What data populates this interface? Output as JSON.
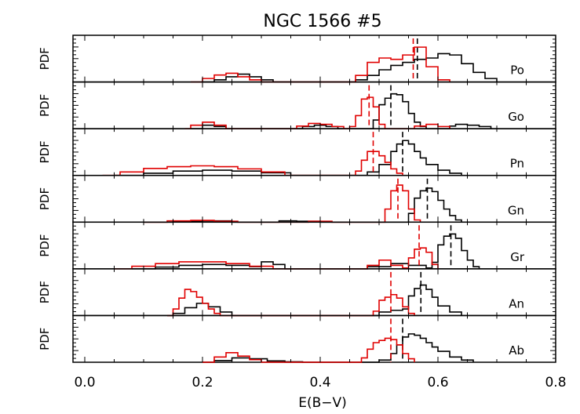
{
  "chart_data": {
    "type": "histogram-stack",
    "title": "NGC 1566 #5",
    "xlabel": "E(B−V)",
    "ylabel": "PDF",
    "xlim": [
      -0.02,
      0.8
    ],
    "xticks": [
      0.0,
      0.2,
      0.4,
      0.6,
      0.8
    ],
    "xtick_labels": [
      "0.0",
      "0.2",
      "0.4",
      "0.6",
      "0.8"
    ],
    "colors": {
      "black_series": "#000000",
      "red_series": "#e00000"
    },
    "panels": [
      {
        "label": "Po",
        "black_median": 0.565,
        "red_median": 0.558,
        "black": [
          [
            0.2,
            0
          ],
          [
            0.22,
            0.05
          ],
          [
            0.24,
            0.12
          ],
          [
            0.26,
            0.18
          ],
          [
            0.28,
            0.12
          ],
          [
            0.3,
            0.05
          ],
          [
            0.32,
            0
          ],
          [
            0.44,
            0
          ],
          [
            0.46,
            0.05
          ],
          [
            0.48,
            0.15
          ],
          [
            0.5,
            0.28
          ],
          [
            0.52,
            0.38
          ],
          [
            0.54,
            0.45
          ],
          [
            0.56,
            0.52
          ],
          [
            0.58,
            0.55
          ],
          [
            0.6,
            0.65
          ],
          [
            0.62,
            0.62
          ],
          [
            0.64,
            0.42
          ],
          [
            0.66,
            0.22
          ],
          [
            0.68,
            0.08
          ],
          [
            0.7,
            0
          ]
        ],
        "red": [
          [
            0.18,
            0
          ],
          [
            0.2,
            0.08
          ],
          [
            0.22,
            0.16
          ],
          [
            0.24,
            0.2
          ],
          [
            0.26,
            0.12
          ],
          [
            0.28,
            0.05
          ],
          [
            0.3,
            0
          ],
          [
            0.44,
            0
          ],
          [
            0.46,
            0.15
          ],
          [
            0.48,
            0.45
          ],
          [
            0.5,
            0.55
          ],
          [
            0.52,
            0.52
          ],
          [
            0.54,
            0.62
          ],
          [
            0.56,
            0.8
          ],
          [
            0.58,
            0.35
          ],
          [
            0.6,
            0.05
          ],
          [
            0.62,
            0
          ]
        ]
      },
      {
        "label": "Go",
        "black_median": 0.52,
        "red_median": 0.483,
        "black": [
          [
            0.18,
            0
          ],
          [
            0.2,
            0.08
          ],
          [
            0.22,
            0.05
          ],
          [
            0.24,
            0
          ],
          [
            0.35,
            0
          ],
          [
            0.37,
            0.05
          ],
          [
            0.39,
            0.08
          ],
          [
            0.41,
            0.05
          ],
          [
            0.43,
            0
          ],
          [
            0.48,
            0
          ],
          [
            0.49,
            0.2
          ],
          [
            0.5,
            0.55
          ],
          [
            0.51,
            0.7
          ],
          [
            0.52,
            0.8
          ],
          [
            0.53,
            0.78
          ],
          [
            0.54,
            0.62
          ],
          [
            0.55,
            0.35
          ],
          [
            0.56,
            0.15
          ],
          [
            0.57,
            0.05
          ],
          [
            0.58,
            0
          ],
          [
            0.61,
            0
          ],
          [
            0.62,
            0.06
          ],
          [
            0.63,
            0.1
          ],
          [
            0.65,
            0.08
          ],
          [
            0.67,
            0.05
          ],
          [
            0.69,
            0
          ]
        ],
        "red": [
          [
            0.17,
            0
          ],
          [
            0.18,
            0.08
          ],
          [
            0.2,
            0.15
          ],
          [
            0.22,
            0.08
          ],
          [
            0.24,
            0
          ],
          [
            0.34,
            0
          ],
          [
            0.36,
            0.06
          ],
          [
            0.38,
            0.12
          ],
          [
            0.4,
            0.1
          ],
          [
            0.42,
            0.05
          ],
          [
            0.44,
            0
          ],
          [
            0.45,
            0.05
          ],
          [
            0.46,
            0.3
          ],
          [
            0.47,
            0.68
          ],
          [
            0.48,
            0.72
          ],
          [
            0.49,
            0.5
          ],
          [
            0.5,
            0.1
          ],
          [
            0.51,
            0
          ],
          [
            0.55,
            0
          ],
          [
            0.56,
            0.06
          ],
          [
            0.58,
            0.1
          ],
          [
            0.6,
            0.05
          ],
          [
            0.62,
            0
          ]
        ]
      },
      {
        "label": "Pn",
        "black_median": 0.54,
        "red_median": 0.49,
        "black": [
          [
            0.05,
            0
          ],
          [
            0.1,
            0.05
          ],
          [
            0.15,
            0.1
          ],
          [
            0.2,
            0.12
          ],
          [
            0.25,
            0.1
          ],
          [
            0.3,
            0.06
          ],
          [
            0.35,
            0
          ],
          [
            0.47,
            0
          ],
          [
            0.48,
            0.08
          ],
          [
            0.5,
            0.25
          ],
          [
            0.52,
            0.55
          ],
          [
            0.53,
            0.72
          ],
          [
            0.54,
            0.8
          ],
          [
            0.55,
            0.72
          ],
          [
            0.56,
            0.55
          ],
          [
            0.57,
            0.4
          ],
          [
            0.58,
            0.25
          ],
          [
            0.6,
            0.12
          ],
          [
            0.62,
            0.05
          ],
          [
            0.64,
            0
          ]
        ],
        "red": [
          [
            0.03,
            0
          ],
          [
            0.06,
            0.08
          ],
          [
            0.1,
            0.16
          ],
          [
            0.14,
            0.2
          ],
          [
            0.18,
            0.22
          ],
          [
            0.22,
            0.2
          ],
          [
            0.26,
            0.15
          ],
          [
            0.3,
            0.08
          ],
          [
            0.34,
            0
          ],
          [
            0.45,
            0
          ],
          [
            0.46,
            0.1
          ],
          [
            0.47,
            0.35
          ],
          [
            0.48,
            0.55
          ],
          [
            0.49,
            0.55
          ],
          [
            0.5,
            0.45
          ],
          [
            0.51,
            0.3
          ],
          [
            0.52,
            0.15
          ],
          [
            0.53,
            0.05
          ],
          [
            0.54,
            0
          ]
        ]
      },
      {
        "label": "Gn",
        "black_median": 0.582,
        "red_median": 0.532,
        "black": [
          [
            0.1,
            0
          ],
          [
            0.15,
            0.02
          ],
          [
            0.2,
            0.03
          ],
          [
            0.25,
            0
          ],
          [
            0.3,
            0
          ],
          [
            0.33,
            0.03
          ],
          [
            0.36,
            0.02
          ],
          [
            0.4,
            0
          ],
          [
            0.54,
            0
          ],
          [
            0.55,
            0.2
          ],
          [
            0.56,
            0.55
          ],
          [
            0.57,
            0.72
          ],
          [
            0.58,
            0.78
          ],
          [
            0.59,
            0.7
          ],
          [
            0.6,
            0.5
          ],
          [
            0.61,
            0.3
          ],
          [
            0.62,
            0.15
          ],
          [
            0.63,
            0.05
          ],
          [
            0.64,
            0
          ]
        ],
        "red": [
          [
            0.1,
            0
          ],
          [
            0.14,
            0.03
          ],
          [
            0.18,
            0.04
          ],
          [
            0.22,
            0.02
          ],
          [
            0.26,
            0
          ],
          [
            0.36,
            0
          ],
          [
            0.38,
            0.02
          ],
          [
            0.42,
            0
          ],
          [
            0.5,
            0
          ],
          [
            0.51,
            0.3
          ],
          [
            0.52,
            0.72
          ],
          [
            0.53,
            0.85
          ],
          [
            0.54,
            0.72
          ],
          [
            0.55,
            0.3
          ],
          [
            0.56,
            0.05
          ],
          [
            0.57,
            0
          ]
        ]
      },
      {
        "label": "Gr",
        "black_median": 0.622,
        "red_median": 0.568,
        "black": [
          [
            0.08,
            0
          ],
          [
            0.12,
            0.04
          ],
          [
            0.16,
            0.08
          ],
          [
            0.2,
            0.1
          ],
          [
            0.24,
            0.08
          ],
          [
            0.28,
            0.05
          ],
          [
            0.3,
            0.16
          ],
          [
            0.32,
            0.1
          ],
          [
            0.34,
            0
          ],
          [
            0.45,
            0
          ],
          [
            0.48,
            0.05
          ],
          [
            0.52,
            0.12
          ],
          [
            0.55,
            0.08
          ],
          [
            0.58,
            0.02
          ],
          [
            0.59,
            0.15
          ],
          [
            0.6,
            0.55
          ],
          [
            0.61,
            0.75
          ],
          [
            0.62,
            0.8
          ],
          [
            0.63,
            0.7
          ],
          [
            0.64,
            0.42
          ],
          [
            0.65,
            0.2
          ],
          [
            0.66,
            0.05
          ],
          [
            0.67,
            0
          ]
        ],
        "red": [
          [
            0.05,
            0
          ],
          [
            0.08,
            0.06
          ],
          [
            0.12,
            0.12
          ],
          [
            0.16,
            0.16
          ],
          [
            0.2,
            0.16
          ],
          [
            0.24,
            0.12
          ],
          [
            0.28,
            0.06
          ],
          [
            0.32,
            0
          ],
          [
            0.47,
            0
          ],
          [
            0.48,
            0.08
          ],
          [
            0.5,
            0.2
          ],
          [
            0.52,
            0.08
          ],
          [
            0.54,
            0.02
          ],
          [
            0.55,
            0.25
          ],
          [
            0.56,
            0.45
          ],
          [
            0.57,
            0.48
          ],
          [
            0.58,
            0.38
          ],
          [
            0.59,
            0.1
          ],
          [
            0.6,
            0
          ]
        ]
      },
      {
        "label": "An",
        "black_median": 0.571,
        "red_median": 0.52,
        "black": [
          [
            0.14,
            0
          ],
          [
            0.15,
            0.05
          ],
          [
            0.17,
            0.18
          ],
          [
            0.19,
            0.28
          ],
          [
            0.21,
            0.2
          ],
          [
            0.23,
            0.08
          ],
          [
            0.25,
            0
          ],
          [
            0.48,
            0
          ],
          [
            0.5,
            0.08
          ],
          [
            0.52,
            0.12
          ],
          [
            0.54,
            0.15
          ],
          [
            0.55,
            0.45
          ],
          [
            0.56,
            0.62
          ],
          [
            0.57,
            0.7
          ],
          [
            0.58,
            0.6
          ],
          [
            0.59,
            0.42
          ],
          [
            0.6,
            0.22
          ],
          [
            0.62,
            0.08
          ],
          [
            0.64,
            0
          ]
        ],
        "red": [
          [
            0.14,
            0
          ],
          [
            0.15,
            0.15
          ],
          [
            0.16,
            0.4
          ],
          [
            0.17,
            0.6
          ],
          [
            0.18,
            0.55
          ],
          [
            0.19,
            0.42
          ],
          [
            0.2,
            0.28
          ],
          [
            0.21,
            0.15
          ],
          [
            0.22,
            0.05
          ],
          [
            0.23,
            0
          ],
          [
            0.48,
            0
          ],
          [
            0.49,
            0.1
          ],
          [
            0.5,
            0.35
          ],
          [
            0.51,
            0.42
          ],
          [
            0.52,
            0.48
          ],
          [
            0.53,
            0.4
          ],
          [
            0.54,
            0.2
          ],
          [
            0.55,
            0.05
          ],
          [
            0.56,
            0
          ]
        ]
      },
      {
        "label": "Ab",
        "black_median": 0.54,
        "red_median": 0.52,
        "black": [
          [
            0.2,
            0
          ],
          [
            0.22,
            0.04
          ],
          [
            0.25,
            0.1
          ],
          [
            0.28,
            0.08
          ],
          [
            0.31,
            0.03
          ],
          [
            0.34,
            0.01
          ],
          [
            0.37,
            0
          ],
          [
            0.49,
            0
          ],
          [
            0.5,
            0.05
          ],
          [
            0.52,
            0.2
          ],
          [
            0.53,
            0.4
          ],
          [
            0.54,
            0.58
          ],
          [
            0.55,
            0.65
          ],
          [
            0.56,
            0.62
          ],
          [
            0.57,
            0.55
          ],
          [
            0.58,
            0.45
          ],
          [
            0.59,
            0.35
          ],
          [
            0.6,
            0.25
          ],
          [
            0.62,
            0.12
          ],
          [
            0.64,
            0.05
          ],
          [
            0.66,
            0
          ]
        ],
        "red": [
          [
            0.2,
            0
          ],
          [
            0.22,
            0.12
          ],
          [
            0.24,
            0.22
          ],
          [
            0.26,
            0.14
          ],
          [
            0.28,
            0.06
          ],
          [
            0.3,
            0
          ],
          [
            0.46,
            0
          ],
          [
            0.47,
            0.1
          ],
          [
            0.48,
            0.3
          ],
          [
            0.49,
            0.45
          ],
          [
            0.5,
            0.5
          ],
          [
            0.51,
            0.55
          ],
          [
            0.52,
            0.52
          ],
          [
            0.53,
            0.4
          ],
          [
            0.54,
            0.2
          ],
          [
            0.55,
            0.08
          ],
          [
            0.56,
            0
          ]
        ]
      }
    ]
  }
}
